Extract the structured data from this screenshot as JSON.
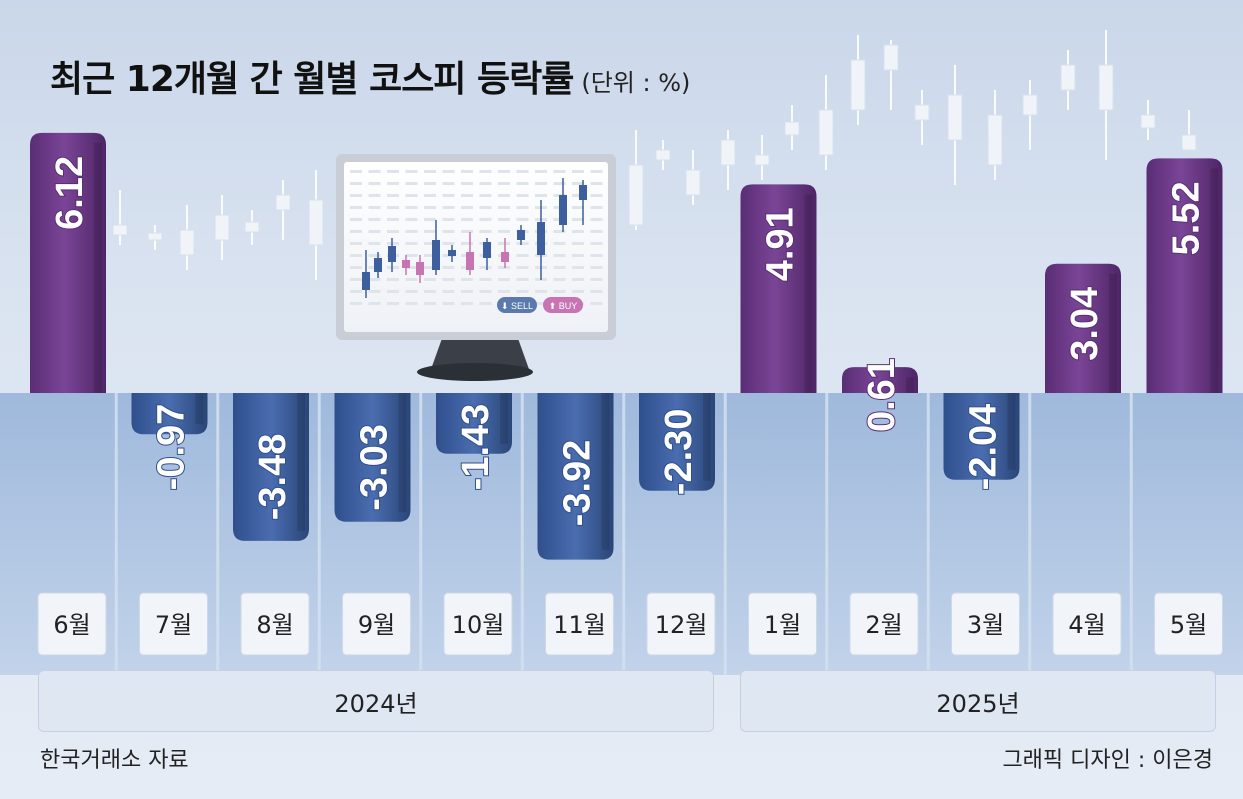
{
  "title": "최근 12개월 간 월별 코스피 등락률",
  "unit": "(단위 : %)",
  "source": "한국거래소 자료",
  "credit": "그래픽 디자인 : 이은경",
  "years": [
    "2024년",
    "2025년"
  ],
  "monitor": {
    "sell_label": "⬇ SELL",
    "buy_label": "⬆ BUY"
  },
  "colors": {
    "positive": "#6a3a86",
    "negative": "#3d5f9e",
    "water": "#a9c1e0",
    "label_box": "#f1f4f9"
  },
  "chart_data": {
    "type": "bar",
    "categories": [
      "6월",
      "7월",
      "8월",
      "9월",
      "10월",
      "11월",
      "12월",
      "1월",
      "2월",
      "3월",
      "4월",
      "5월"
    ],
    "values": [
      6.12,
      -0.97,
      -3.48,
      -3.03,
      -1.43,
      -3.92,
      -2.3,
      4.91,
      0.61,
      -2.04,
      3.04,
      5.52
    ],
    "labels": [
      "6.12",
      "-0.97",
      "-3.48",
      "-3.03",
      "-1.43",
      "-3.92",
      "-2.30",
      "4.91",
      "0.61",
      "-2.04",
      "3.04",
      "5.52"
    ],
    "groups": [
      {
        "name": "2024년",
        "from": 0,
        "to": 6
      },
      {
        "name": "2025년",
        "from": 7,
        "to": 11
      }
    ],
    "title": "최근 12개월 간 월별 코스피 등락률",
    "xlabel": "",
    "ylabel": "",
    "unit": "%",
    "grid": false
  }
}
